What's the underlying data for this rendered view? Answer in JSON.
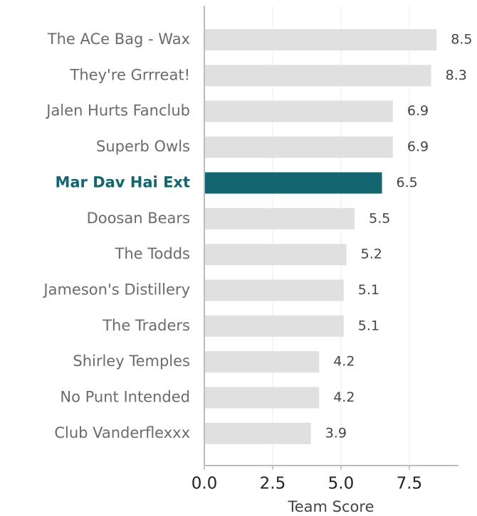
{
  "chart_data": {
    "type": "barh",
    "categories": [
      "The ACe Bag - Wax",
      "They're Grrreat!",
      "Jalen Hurts Fanclub",
      "Superb Owls",
      "Mar Dav Hai Ext",
      "Doosan Bears",
      "The Todds",
      "Jameson's Distillery",
      "The Traders",
      "Shirley Temples",
      "No Punt Intended",
      "Club Vanderflexxx"
    ],
    "values": [
      8.5,
      8.3,
      6.9,
      6.9,
      6.5,
      5.5,
      5.2,
      5.1,
      5.1,
      4.2,
      4.2,
      3.9
    ],
    "color": "#e0e0e0",
    "colors": [
      "#e0e0e0",
      "#e0e0e0",
      "#e0e0e0",
      "#e0e0e0",
      "#13666f",
      "#e0e0e0",
      "#e0e0e0",
      "#e0e0e0",
      "#e0e0e0",
      "#e0e0e0",
      "#e0e0e0",
      "#e0e0e0"
    ],
    "xlabel": "Team Score",
    "xlim": [
      0,
      9.3
    ],
    "xticks": [
      {
        "value": 0,
        "label": "0.0"
      },
      2.5,
      {
        "value": 5,
        "label": "5.0"
      },
      7.5
    ],
    "grid": true
  }
}
